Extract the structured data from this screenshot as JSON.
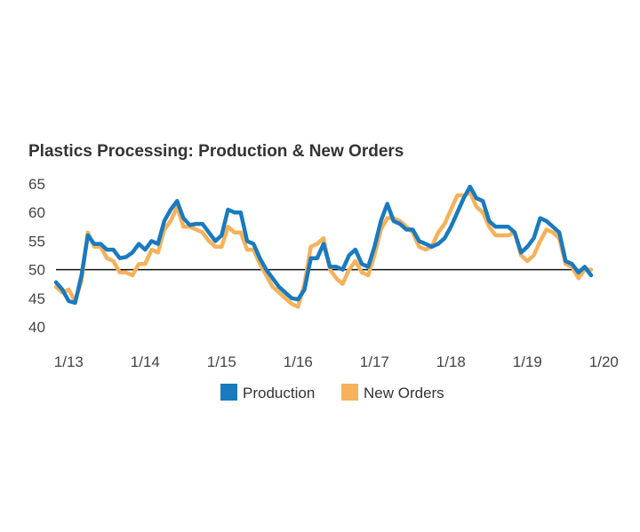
{
  "chart_data": {
    "type": "line",
    "title": "Plastics Processing: Production & New Orders",
    "xlabel": "",
    "ylabel": "",
    "ylim": [
      40,
      65
    ],
    "yticks": [
      "65",
      "60",
      "55",
      "50",
      "45",
      "40"
    ],
    "xticks": [
      {
        "label": "1/13",
        "month": 12
      },
      {
        "label": "1/14",
        "month": 24
      },
      {
        "label": "1/15",
        "month": 36
      },
      {
        "label": "1/16",
        "month": 48
      },
      {
        "label": "1/17",
        "month": 60
      },
      {
        "label": "1/18",
        "month": 72
      },
      {
        "label": "1/19",
        "month": 84
      },
      {
        "label": "1/20",
        "month": 96
      }
    ],
    "x_start": "1/12",
    "x_unit": "month",
    "reference_line": 50,
    "grid": false,
    "legend_position": "bottom",
    "series": [
      {
        "name": "Production",
        "color": "#1a7abf",
        "x": [
          10,
          11,
          12,
          13,
          14,
          15,
          16,
          17,
          18,
          19,
          20,
          21,
          22,
          23,
          24,
          25,
          26,
          27,
          28,
          29,
          30,
          31,
          32,
          33,
          34,
          35,
          36,
          37,
          38,
          39,
          40,
          41,
          42,
          43,
          44,
          45,
          46,
          47,
          48,
          49,
          50,
          51,
          52,
          53,
          54,
          55,
          56,
          57,
          58,
          59,
          60,
          61,
          62,
          63,
          64,
          65,
          66,
          67,
          68,
          69,
          70,
          71,
          72,
          73,
          74,
          75,
          76,
          77,
          78,
          79,
          80,
          81,
          82,
          83,
          84,
          85,
          86,
          87,
          88,
          89,
          90,
          91,
          92,
          93,
          94
        ],
        "values": [
          47.8,
          46.5,
          44.5,
          44.2,
          49.0,
          56.0,
          54.5,
          54.5,
          53.5,
          53.5,
          52.0,
          52.2,
          53.0,
          54.5,
          53.5,
          55.0,
          54.5,
          58.5,
          60.5,
          62.0,
          59.0,
          57.8,
          58.0,
          58.0,
          56.5,
          55.0,
          56.0,
          60.5,
          60.0,
          60.0,
          55.0,
          54.5,
          52.0,
          50.0,
          48.5,
          47.0,
          46.0,
          45.0,
          44.8,
          46.5,
          52.0,
          52.0,
          54.5,
          50.5,
          50.5,
          50.0,
          52.5,
          53.5,
          51.0,
          50.5,
          54.0,
          58.5,
          61.5,
          58.5,
          58.0,
          57.0,
          57.0,
          55.0,
          54.5,
          54.0,
          54.5,
          55.5,
          57.5,
          60.0,
          62.5,
          64.5,
          62.5,
          62.0,
          58.5,
          57.5,
          57.5,
          57.5,
          56.5,
          53.0,
          54.0,
          55.5,
          59.0,
          58.5,
          57.5,
          56.5,
          51.5,
          51.0,
          49.5,
          50.5,
          49.0
        ]
      },
      {
        "name": "New Orders",
        "color": "#f5b25b",
        "x": [
          10,
          11,
          12,
          13,
          14,
          15,
          16,
          17,
          18,
          19,
          20,
          21,
          22,
          23,
          24,
          25,
          26,
          27,
          28,
          29,
          30,
          31,
          32,
          33,
          34,
          35,
          36,
          37,
          38,
          39,
          40,
          41,
          42,
          43,
          44,
          45,
          46,
          47,
          48,
          49,
          50,
          51,
          52,
          53,
          54,
          55,
          56,
          57,
          58,
          59,
          60,
          61,
          62,
          63,
          64,
          65,
          66,
          67,
          68,
          69,
          70,
          71,
          72,
          73,
          74,
          75,
          76,
          77,
          78,
          79,
          80,
          81,
          82,
          83,
          84,
          85,
          86,
          87,
          88,
          89,
          90,
          91,
          92,
          93,
          94
        ],
        "values": [
          47.0,
          46.0,
          46.5,
          44.5,
          48.0,
          56.5,
          54.0,
          54.0,
          52.0,
          51.5,
          49.5,
          49.5,
          49.0,
          51.0,
          51.0,
          53.5,
          53.0,
          57.0,
          58.5,
          61.0,
          57.5,
          57.5,
          57.0,
          56.5,
          55.0,
          54.0,
          54.0,
          57.5,
          56.5,
          56.5,
          53.5,
          53.5,
          51.0,
          49.0,
          47.0,
          46.0,
          45.0,
          44.0,
          43.5,
          47.5,
          54.0,
          54.5,
          55.5,
          50.0,
          48.5,
          47.5,
          50.0,
          51.5,
          49.5,
          49.0,
          52.5,
          57.0,
          59.0,
          59.0,
          58.5,
          57.5,
          56.5,
          54.0,
          53.5,
          54.0,
          56.5,
          58.0,
          60.5,
          63.0,
          63.0,
          63.5,
          61.0,
          60.0,
          57.5,
          56.0,
          56.0,
          56.0,
          56.5,
          52.5,
          51.5,
          52.5,
          55.0,
          57.0,
          56.5,
          55.5,
          51.0,
          50.5,
          48.5,
          50.0,
          50.0
        ]
      }
    ]
  }
}
